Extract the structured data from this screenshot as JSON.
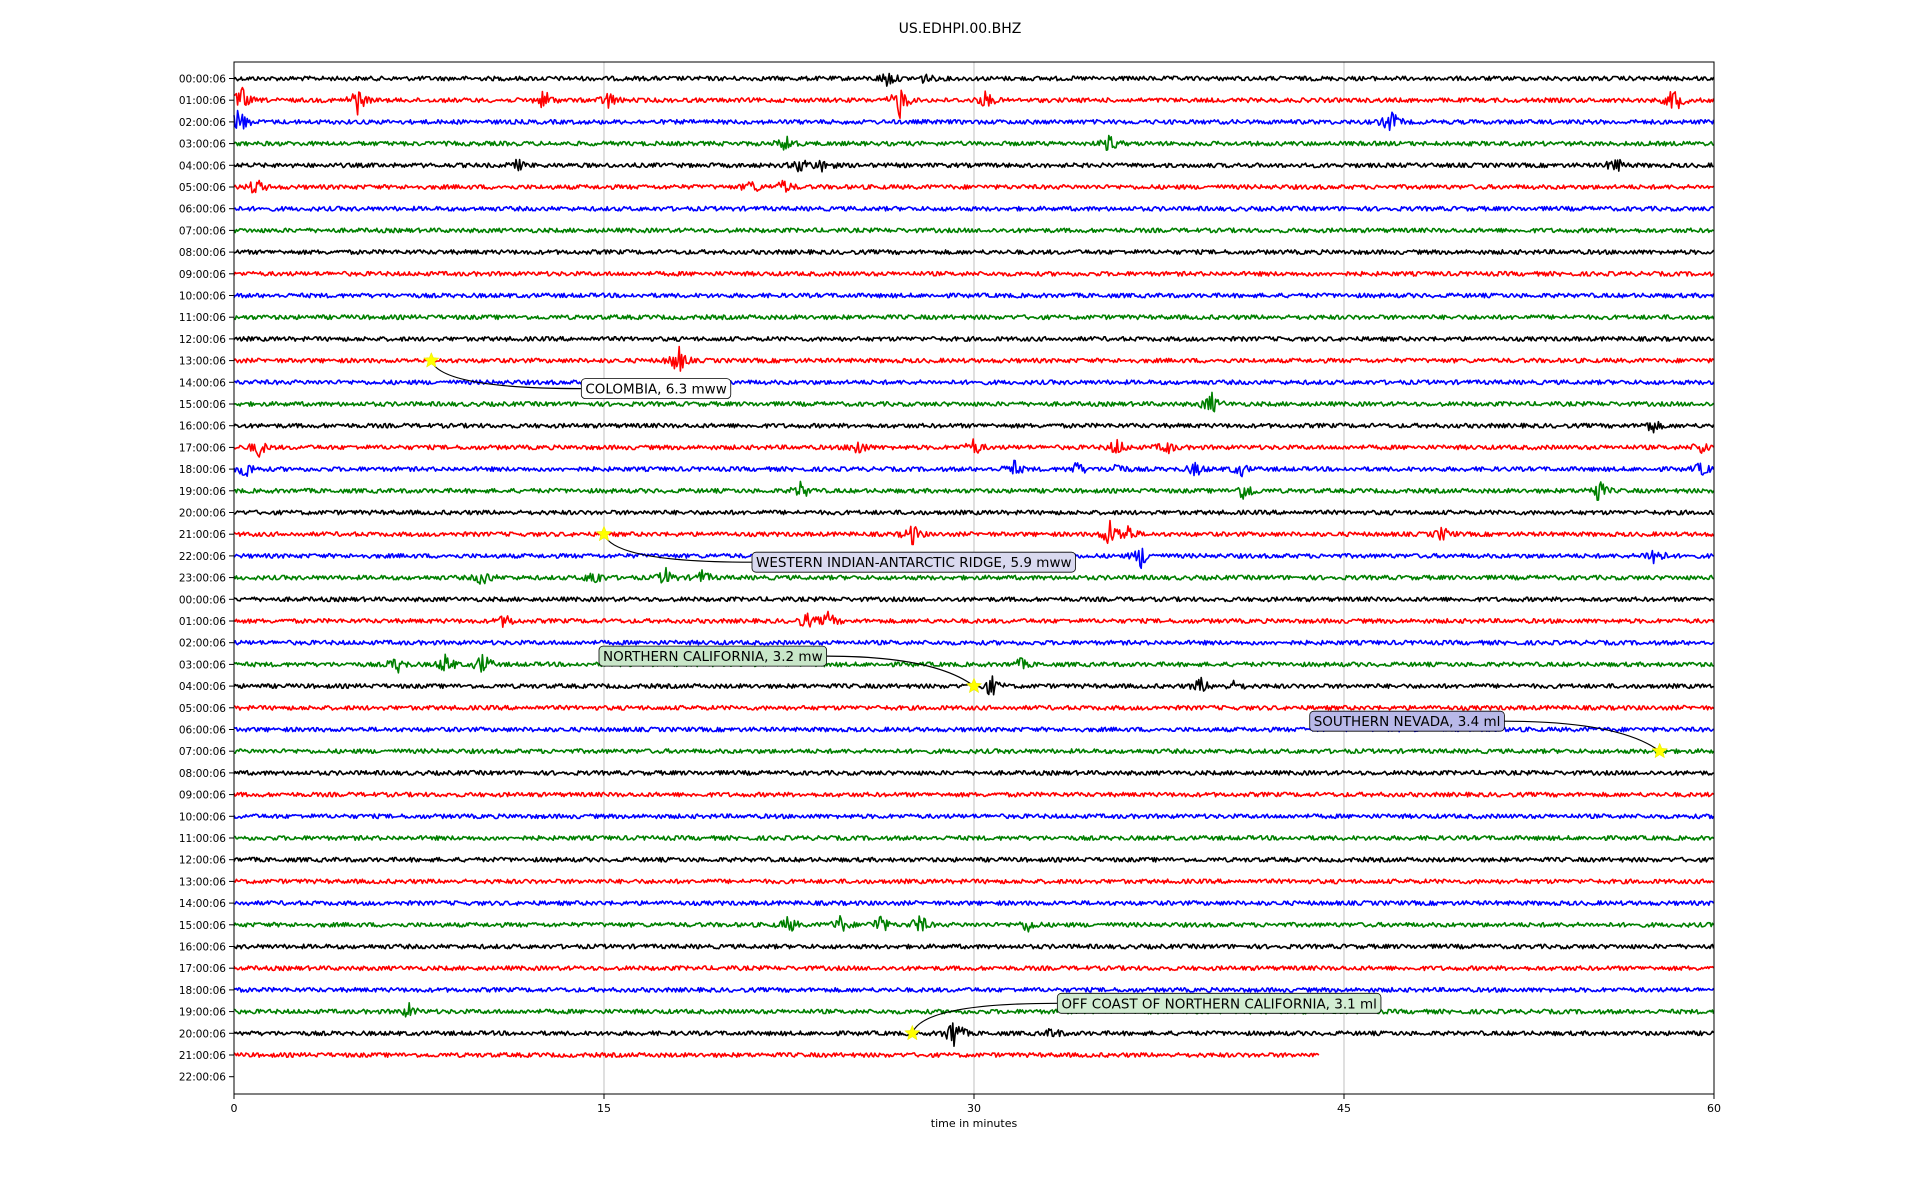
{
  "title": "US.EDHPI.00.BHZ",
  "chart_data": {
    "type": "line",
    "title": "US.EDHPI.00.BHZ",
    "xlabel": "time in minutes",
    "ylabel": "",
    "xlim": [
      0,
      60
    ],
    "x_ticks": [
      0,
      15,
      30,
      45,
      60
    ],
    "grid": "vertical lines at 15, 30, 45",
    "row_colors": [
      "#000000",
      "#ff0000",
      "#0000ff",
      "#008000"
    ],
    "rows": [
      {
        "label": "00:00:06"
      },
      {
        "label": "01:00:06"
      },
      {
        "label": "02:00:06"
      },
      {
        "label": "03:00:06"
      },
      {
        "label": "04:00:06"
      },
      {
        "label": "05:00:06"
      },
      {
        "label": "06:00:06"
      },
      {
        "label": "07:00:06"
      },
      {
        "label": "08:00:06"
      },
      {
        "label": "09:00:06"
      },
      {
        "label": "10:00:06"
      },
      {
        "label": "11:00:06"
      },
      {
        "label": "12:00:06"
      },
      {
        "label": "13:00:06"
      },
      {
        "label": "14:00:06"
      },
      {
        "label": "15:00:06"
      },
      {
        "label": "16:00:06"
      },
      {
        "label": "17:00:06"
      },
      {
        "label": "18:00:06"
      },
      {
        "label": "19:00:06"
      },
      {
        "label": "20:00:06"
      },
      {
        "label": "21:00:06"
      },
      {
        "label": "22:00:06"
      },
      {
        "label": "23:00:06"
      },
      {
        "label": "00:00:06"
      },
      {
        "label": "01:00:06"
      },
      {
        "label": "02:00:06"
      },
      {
        "label": "03:00:06"
      },
      {
        "label": "04:00:06"
      },
      {
        "label": "05:00:06"
      },
      {
        "label": "06:00:06"
      },
      {
        "label": "07:00:06"
      },
      {
        "label": "08:00:06"
      },
      {
        "label": "09:00:06"
      },
      {
        "label": "10:00:06"
      },
      {
        "label": "11:00:06"
      },
      {
        "label": "12:00:06"
      },
      {
        "label": "13:00:06"
      },
      {
        "label": "14:00:06"
      },
      {
        "label": "15:00:06"
      },
      {
        "label": "16:00:06"
      },
      {
        "label": "17:00:06"
      },
      {
        "label": "18:00:06"
      },
      {
        "label": "19:00:06"
      },
      {
        "label": "20:00:06"
      },
      {
        "label": "21:00:06",
        "end_minute": 44
      },
      {
        "label": "22:00:06",
        "end_minute": 0
      }
    ],
    "events": [
      {
        "label": "COLOMBIA, 6.3 mww",
        "row": 13,
        "minute": 8,
        "box_color": "#ffffff"
      },
      {
        "label": "WESTERN INDIAN-ANTARCTIC RIDGE, 5.9 mww",
        "row": 21,
        "minute": 15,
        "box_color": "#d9d9ef"
      },
      {
        "label": "NORTHERN CALIFORNIA, 3.2 mw",
        "row": 28,
        "minute": 30,
        "box_color": "#c8e6c8"
      },
      {
        "label": "SOUTHERN NEVADA, 3.4 ml",
        "row": 31,
        "minute": 57.8,
        "box_color": "#b8b8e8"
      },
      {
        "label": "OFF COAST OF NORTHERN CALIFORNIA, 3.1 ml",
        "row": 44,
        "minute": 27.5,
        "box_color": "#d2ecd2"
      }
    ],
    "bursts": [
      {
        "row": 0,
        "minute": 26.5,
        "amp": 1.0
      },
      {
        "row": 0,
        "minute": 28,
        "amp": 0.5
      },
      {
        "row": 1,
        "minute": 0.3,
        "amp": 1.5
      },
      {
        "row": 1,
        "minute": 5,
        "amp": 1.6
      },
      {
        "row": 1,
        "minute": 12.6,
        "amp": 1.2
      },
      {
        "row": 1,
        "minute": 15.2,
        "amp": 1.0
      },
      {
        "row": 1,
        "minute": 27,
        "amp": 2.0
      },
      {
        "row": 1,
        "minute": 30.5,
        "amp": 1.0
      },
      {
        "row": 1,
        "minute": 58.4,
        "amp": 1.6
      },
      {
        "row": 2,
        "minute": 0.2,
        "amp": 1.8
      },
      {
        "row": 2,
        "minute": 46.9,
        "amp": 1.4
      },
      {
        "row": 3,
        "minute": 22.4,
        "amp": 1.0
      },
      {
        "row": 3,
        "minute": 35.5,
        "amp": 1.0
      },
      {
        "row": 4,
        "minute": 11.5,
        "amp": 0.6
      },
      {
        "row": 4,
        "minute": 23,
        "amp": 1.0
      },
      {
        "row": 4,
        "minute": 23.9,
        "amp": 0.8
      },
      {
        "row": 4,
        "minute": 56,
        "amp": 1.0
      },
      {
        "row": 5,
        "minute": 0.9,
        "amp": 1.0
      },
      {
        "row": 5,
        "minute": 21,
        "amp": 0.8
      },
      {
        "row": 5,
        "minute": 22.3,
        "amp": 0.8
      },
      {
        "row": 13,
        "minute": 18,
        "amp": 1.8
      },
      {
        "row": 15,
        "minute": 39.6,
        "amp": 1.4
      },
      {
        "row": 16,
        "minute": 57.5,
        "amp": 0.8
      },
      {
        "row": 17,
        "minute": 1,
        "amp": 1.0
      },
      {
        "row": 17,
        "minute": 25.3,
        "amp": 1.0
      },
      {
        "row": 17,
        "minute": 30,
        "amp": 1.0
      },
      {
        "row": 17,
        "minute": 35.8,
        "amp": 1.0
      },
      {
        "row": 17,
        "minute": 37.8,
        "amp": 0.8
      },
      {
        "row": 17,
        "minute": 59.5,
        "amp": 0.8
      },
      {
        "row": 18,
        "minute": 0.5,
        "amp": 1.0
      },
      {
        "row": 18,
        "minute": 31.6,
        "amp": 1.0
      },
      {
        "row": 18,
        "minute": 34.2,
        "amp": 0.8
      },
      {
        "row": 18,
        "minute": 35.8,
        "amp": 0.8
      },
      {
        "row": 18,
        "minute": 39,
        "amp": 0.8
      },
      {
        "row": 18,
        "minute": 40.8,
        "amp": 0.8
      },
      {
        "row": 18,
        "minute": 59.5,
        "amp": 0.8
      },
      {
        "row": 19,
        "minute": 23,
        "amp": 1.0
      },
      {
        "row": 19,
        "minute": 41,
        "amp": 1.4
      },
      {
        "row": 19,
        "minute": 55.3,
        "amp": 1.4
      },
      {
        "row": 21,
        "minute": 27.5,
        "amp": 1.2
      },
      {
        "row": 21,
        "minute": 35.5,
        "amp": 1.6
      },
      {
        "row": 21,
        "minute": 36.2,
        "amp": 1.2
      },
      {
        "row": 21,
        "minute": 49,
        "amp": 0.8
      },
      {
        "row": 22,
        "minute": 36.8,
        "amp": 1.4
      },
      {
        "row": 22,
        "minute": 57.6,
        "amp": 1.4
      },
      {
        "row": 23,
        "minute": 10.1,
        "amp": 1.0
      },
      {
        "row": 23,
        "minute": 14.6,
        "amp": 1.0
      },
      {
        "row": 23,
        "minute": 17.5,
        "amp": 1.0
      },
      {
        "row": 23,
        "minute": 19,
        "amp": 0.8
      },
      {
        "row": 25,
        "minute": 11,
        "amp": 0.8
      },
      {
        "row": 25,
        "minute": 23.2,
        "amp": 0.9
      },
      {
        "row": 25,
        "minute": 24.1,
        "amp": 1.0
      },
      {
        "row": 27,
        "minute": 6.6,
        "amp": 1.0
      },
      {
        "row": 27,
        "minute": 8.6,
        "amp": 1.2
      },
      {
        "row": 27,
        "minute": 10.1,
        "amp": 1.4
      },
      {
        "row": 27,
        "minute": 31.9,
        "amp": 0.6
      },
      {
        "row": 28,
        "minute": 30.7,
        "amp": 1.2
      },
      {
        "row": 28,
        "minute": 39.2,
        "amp": 0.9
      },
      {
        "row": 28,
        "minute": 40.6,
        "amp": 0.6
      },
      {
        "row": 39,
        "minute": 22.5,
        "amp": 1.0
      },
      {
        "row": 39,
        "minute": 24.6,
        "amp": 1.0
      },
      {
        "row": 39,
        "minute": 26.2,
        "amp": 1.2
      },
      {
        "row": 39,
        "minute": 27.8,
        "amp": 1.2
      },
      {
        "row": 39,
        "minute": 32.2,
        "amp": 0.8
      },
      {
        "row": 43,
        "minute": 7.1,
        "amp": 0.8
      },
      {
        "row": 44,
        "minute": 29.2,
        "amp": 2.2
      },
      {
        "row": 44,
        "minute": 33.2,
        "amp": 0.6
      }
    ]
  }
}
